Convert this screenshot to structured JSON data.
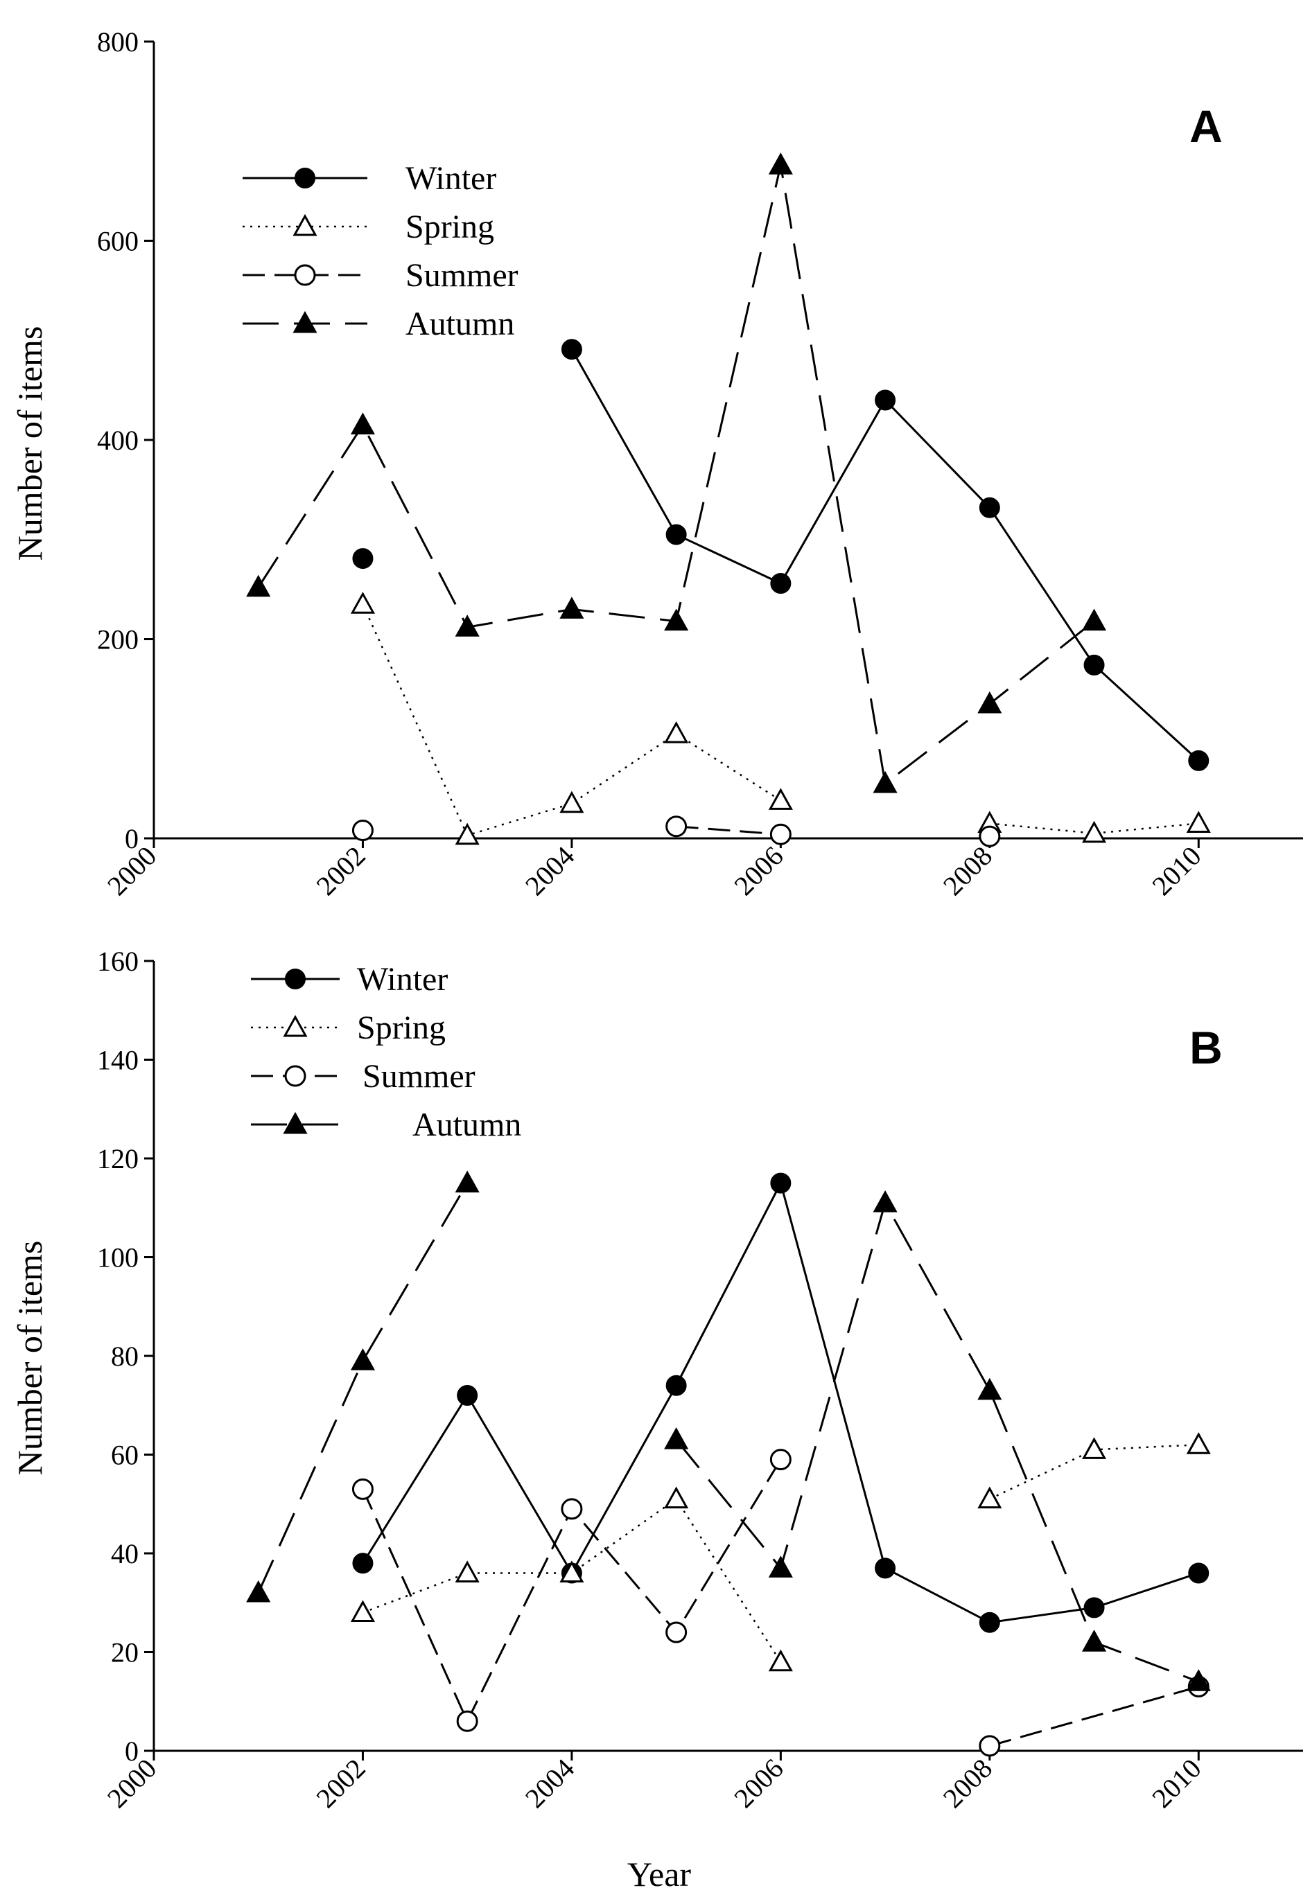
{
  "chart_data": [
    {
      "panel": "A",
      "type": "line",
      "xlabel": "",
      "ylabel": "Number of items",
      "xlim": [
        2000,
        2011
      ],
      "ylim": [
        0,
        800
      ],
      "xticks": [
        2000,
        2002,
        2004,
        2006,
        2008,
        2010
      ],
      "yticks": [
        0,
        200,
        400,
        600,
        800
      ],
      "legend_position": "top-left",
      "series": [
        {
          "name": "Winter",
          "style": "solid",
          "marker": "filled-circle",
          "x": [
            2002,
            2004,
            2005,
            2006,
            2007,
            2008,
            2009,
            2010
          ],
          "y": [
            281,
            491,
            305,
            256,
            440,
            332,
            174,
            78
          ],
          "connected_from": 2004
        },
        {
          "name": "Spring",
          "style": "dotted",
          "marker": "open-triangle",
          "x": [
            2002,
            2003,
            2004,
            2005,
            2006,
            2008,
            2009,
            2010
          ],
          "y": [
            235,
            3,
            35,
            105,
            38,
            15,
            5,
            15
          ],
          "breaks_after": [
            2006
          ]
        },
        {
          "name": "Summer",
          "style": "dashed",
          "marker": "open-circle",
          "x": [
            2002,
            2005,
            2006,
            2008
          ],
          "y": [
            8,
            12,
            4,
            2
          ],
          "connected_pairs": [
            [
              2005,
              2006
            ]
          ]
        },
        {
          "name": "Autumn",
          "style": "long-dashed",
          "marker": "filled-triangle",
          "x": [
            2001,
            2002,
            2003,
            2004,
            2005,
            2006,
            2007,
            2008,
            2009
          ],
          "y": [
            252,
            415,
            212,
            230,
            218,
            676,
            55,
            135,
            218
          ]
        }
      ]
    },
    {
      "panel": "B",
      "type": "line",
      "xlabel": "Year",
      "ylabel": "Number of items",
      "xlim": [
        2000,
        2011
      ],
      "ylim": [
        0,
        160
      ],
      "xticks": [
        2000,
        2002,
        2004,
        2006,
        2008,
        2010
      ],
      "yticks": [
        0,
        20,
        40,
        60,
        80,
        100,
        120,
        140,
        160
      ],
      "legend_position": "top-left",
      "series": [
        {
          "name": "Winter",
          "style": "solid",
          "marker": "filled-circle",
          "x": [
            2002,
            2003,
            2004,
            2005,
            2006,
            2007,
            2008,
            2009,
            2010
          ],
          "y": [
            38,
            72,
            36,
            74,
            115,
            37,
            26,
            29,
            36
          ]
        },
        {
          "name": "Spring",
          "style": "dotted",
          "marker": "open-triangle",
          "x": [
            2002,
            2003,
            2004,
            2005,
            2006,
            2008,
            2009,
            2010
          ],
          "y": [
            28,
            36,
            36,
            51,
            18,
            51,
            61,
            62
          ],
          "breaks_after": [
            2006
          ]
        },
        {
          "name": "Summer",
          "style": "dashed",
          "marker": "open-circle",
          "x": [
            2002,
            2003,
            2004,
            2005,
            2006,
            2008,
            2010
          ],
          "y": [
            53,
            6,
            49,
            24,
            59,
            1,
            13
          ],
          "breaks_after": [
            2006
          ]
        },
        {
          "name": "Autumn",
          "style": "long-dashed",
          "marker": "filled-triangle",
          "x": [
            2001,
            2002,
            2003,
            2005,
            2006,
            2007,
            2008,
            2009,
            2010
          ],
          "y": [
            32,
            79,
            115,
            63,
            37,
            111,
            73,
            22,
            14
          ],
          "breaks_after": [
            2003
          ]
        }
      ]
    }
  ]
}
